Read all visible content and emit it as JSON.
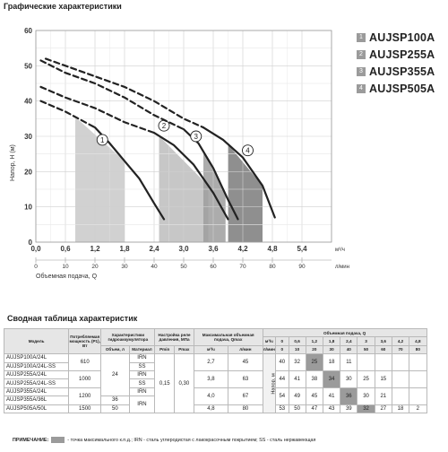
{
  "chart_title": "Графические характеристики",
  "table_title": "Сводная таблица характеристик",
  "chart_data": {
    "type": "line",
    "ylabel": "Напор, H (м)",
    "xlabel": "Объемная подача, Q",
    "x_unit_top": "м³/ч",
    "x_unit_bottom": "л/мин",
    "x_ticks_top": [
      "0,0",
      "0,6",
      "1,2",
      "1,8",
      "2,4",
      "3,0",
      "3,6",
      "4,2",
      "4,8",
      "5,4"
    ],
    "x_ticks_bottom": [
      "0",
      "10",
      "20",
      "30",
      "40",
      "50",
      "60",
      "70",
      "80",
      "90"
    ],
    "y_ticks": [
      "0",
      "10",
      "20",
      "30",
      "40",
      "50",
      "60"
    ],
    "xlim": [
      0,
      6
    ],
    "ylim": [
      0,
      60
    ],
    "grid": true,
    "highlight_color": "#9b9b9b",
    "series": [
      {
        "name": "AUJSP100A",
        "label": "1",
        "dashed_x": [
          0.1,
          0.6,
          1.2
        ],
        "dashed_y": [
          40,
          37,
          32.5
        ],
        "solid_x": [
          1.2,
          1.5,
          1.8,
          2.1,
          2.4,
          2.6
        ],
        "solid_y": [
          32.5,
          28,
          23,
          18,
          11,
          6.5
        ],
        "band": [
          0.8,
          1.8
        ],
        "label_pos": [
          1.35,
          29
        ]
      },
      {
        "name": "AUJSP255A",
        "label": "2",
        "dashed_x": [
          0.1,
          0.6,
          1.2,
          1.8,
          2.4
        ],
        "dashed_y": [
          44,
          41,
          38,
          34,
          31
        ],
        "solid_x": [
          2.4,
          2.8,
          3.2,
          3.6,
          3.9
        ],
        "solid_y": [
          31,
          27.5,
          22,
          14,
          6.5
        ],
        "band": [
          2.5,
          3.5
        ],
        "label_pos": [
          2.6,
          33
        ]
      },
      {
        "name": "AUJSP355A",
        "label": "3",
        "dashed_x": [
          0.1,
          0.6,
          1.2,
          1.8,
          2.4,
          3.0
        ],
        "dashed_y": [
          51.5,
          48,
          45,
          41,
          36,
          32
        ],
        "solid_x": [
          3.0,
          3.3,
          3.6,
          3.9,
          4.1
        ],
        "solid_y": [
          32,
          28,
          21,
          12,
          6.5
        ],
        "band": [
          3.4,
          3.85
        ],
        "label_pos": [
          3.25,
          30
        ]
      },
      {
        "name": "AUJSP505A",
        "label": "4",
        "dashed_x": [
          0.2,
          0.6,
          1.2,
          1.8,
          2.4,
          3.0,
          3.4
        ],
        "dashed_y": [
          52,
          50,
          47,
          44,
          40,
          35,
          32.5
        ],
        "solid_x": [
          3.4,
          3.8,
          4.2,
          4.6,
          4.85
        ],
        "solid_y": [
          32.5,
          29,
          24,
          16,
          7
        ],
        "band": [
          3.9,
          4.6
        ],
        "label_pos": [
          4.3,
          26
        ]
      }
    ]
  },
  "legend": [
    {
      "num": "1",
      "name": "AUJSP100A"
    },
    {
      "num": "2",
      "name": "AUJSP255A"
    },
    {
      "num": "3",
      "name": "AUJSP355A"
    },
    {
      "num": "4",
      "name": "AUJSP505A"
    }
  ],
  "table": {
    "col_model": "Модель",
    "col_power": "Потребляемая мощность (P1), Вт",
    "col_tank": "Характеристики гидроаккумулятора",
    "col_tank_volume": "Объем, л",
    "col_tank_material": "Материал",
    "col_relay": "Настройка реле давления, МПа",
    "col_pmin": "Pmin",
    "col_pmax": "Pmax",
    "col_maxhead": "Максимальная объемная подача, Qmax",
    "col_m3h": "м³/ч",
    "col_lmin": "л/мин",
    "col_flow": "Объемная подача, Q",
    "flow_unit_m3h": "м³/ч",
    "flow_unit_lmin": "л/мин",
    "flow_m3h": [
      "0",
      "0,6",
      "1,2",
      "1,8",
      "2,4",
      "3",
      "3,6",
      "4,2",
      "4,8"
    ],
    "flow_lmin": [
      "0",
      "10",
      "20",
      "30",
      "40",
      "50",
      "60",
      "70",
      "80"
    ],
    "head_label": "Напор, м",
    "tank_24": "24",
    "pmin_val": "0,15",
    "pmax_val": "0,30",
    "rows": [
      {
        "model": "AUJSP100A/24L",
        "power": "610",
        "material": "IRN",
        "m3h": "2,7",
        "lmin": "45",
        "vals": [
          "40",
          "32",
          "25",
          "18",
          "11",
          "",
          "",
          "",
          ""
        ],
        "hl": 2
      },
      {
        "model": "AUJSP100A/24L-SS",
        "material": "SS"
      },
      {
        "model": "AUJSP255A/24L",
        "power": "1000",
        "material": "IRN",
        "m3h": "3,8",
        "lmin": "63",
        "vals": [
          "44",
          "41",
          "38",
          "34",
          "30",
          "25",
          "15",
          "",
          ""
        ],
        "hl": 3
      },
      {
        "model": "AUJSP255A/24L-SS",
        "material": "SS"
      },
      {
        "model": "AUJSP355A/24L",
        "power": "1200",
        "material": "IRN",
        "m3h": "4,0",
        "lmin": "67",
        "vals": [
          "54",
          "49",
          "45",
          "41",
          "36",
          "30",
          "21",
          "",
          ""
        ],
        "hl": 4
      },
      {
        "model": "AUJSP355A/36L",
        "tank": "36",
        "material": "IRN"
      },
      {
        "model": "AUJSP505A/50L",
        "power": "1500",
        "tank": "50",
        "m3h": "4,8",
        "lmin": "80",
        "vals": [
          "53",
          "50",
          "47",
          "43",
          "39",
          "32",
          "27",
          "18",
          "2"
        ],
        "hl": 5
      }
    ]
  },
  "note": {
    "label": "ПРИМЕЧАНИЕ:",
    "text": "- точка максимального к.п.д.; IRN - сталь углеродистая с лакокрасочным покрытием; SS - сталь нержавеющая"
  }
}
